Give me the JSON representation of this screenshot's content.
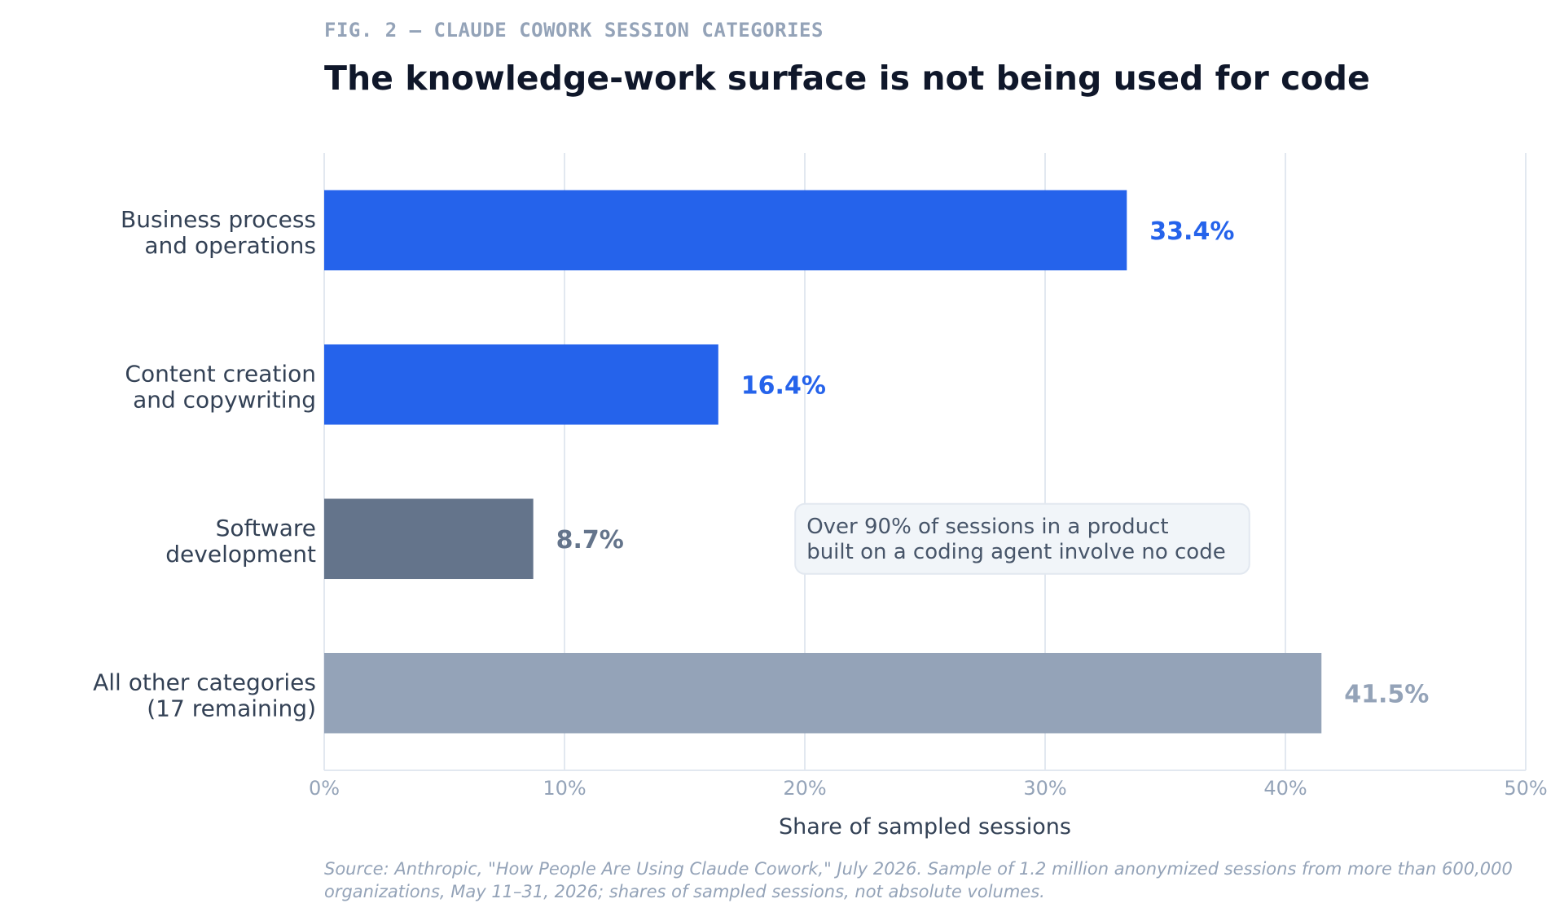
{
  "figure_label": "FIG. 2 — CLAUDE COWORK SESSION CATEGORIES",
  "chart_data": {
    "type": "bar",
    "orientation": "horizontal",
    "title": "The knowledge-work surface is not being used for code",
    "categories": [
      [
        "Business process",
        "and operations"
      ],
      [
        "Content creation",
        "and copywriting"
      ],
      [
        "Software",
        "development"
      ],
      [
        "All other categories",
        "(17 remaining)"
      ]
    ],
    "values": [
      33.4,
      16.4,
      8.7,
      41.5
    ],
    "value_labels": [
      "33.4%",
      "16.4%",
      "8.7%",
      "41.5%"
    ],
    "bar_colors": [
      "#2563eb",
      "#2563eb",
      "#64748b",
      "#94a3b8"
    ],
    "label_colors": [
      "#2563eb",
      "#2563eb",
      "#64748b",
      "#94a3b8"
    ],
    "xlabel": "Share of sampled sessions",
    "xlim": [
      0,
      50
    ],
    "xticks": [
      0,
      10,
      20,
      30,
      40,
      50
    ],
    "xtick_labels": [
      "0%",
      "10%",
      "20%",
      "30%",
      "40%",
      "50%"
    ],
    "grid": "vertical",
    "annotation": {
      "lines": [
        "Over 90% of sessions in a product",
        "built on a coding agent involve no code"
      ],
      "x_from": 19.6,
      "x_to": 38.5
    }
  },
  "source_lines": [
    "Source: Anthropic, \"How People Are Using Claude Cowork,\" July 2026. Sample of 1.2 million anonymized sessions from more than 600,000",
    "organizations, May 11–31, 2026; shares of sampled sessions, not absolute volumes."
  ],
  "colors": {
    "title": "#0f172a",
    "eyebrow": "#94a3b8",
    "category_text": "#334155",
    "tick_text": "#94a3b8",
    "axis_label": "#334155",
    "grid": "#e2e8f0",
    "note_bg": "#f1f5f9",
    "note_border": "#e2e8f0",
    "note_text": "#475569",
    "source_text": "#94a3b8"
  }
}
